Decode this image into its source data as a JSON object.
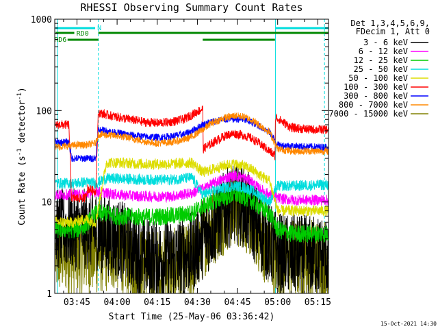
{
  "chart_data": {
    "type": "line",
    "title": "RHESSI Observing Summary Count Rates",
    "xlabel": "Start Time (25-May-06 03:36:42)",
    "ylabel_main": "Count Rate (s",
    "ylabel_sup1": "-1",
    "ylabel_mid": " detector",
    "ylabel_sup2": "-1",
    "ylabel_end": ")",
    "yscale": "log",
    "ylim": [
      1,
      1000
    ],
    "xlim_min": [
      36.7,
      139
    ],
    "x_ticks": [
      {
        "m": 45,
        "label": "03:45"
      },
      {
        "m": 60,
        "label": "04:00"
      },
      {
        "m": 75,
        "label": "04:15"
      },
      {
        "m": 90,
        "label": "04:30"
      },
      {
        "m": 105,
        "label": "04:45"
      },
      {
        "m": 120,
        "label": "05:00"
      },
      {
        "m": 135,
        "label": "05:15"
      }
    ],
    "y_ticks": [
      {
        "v": 1,
        "label": "1"
      },
      {
        "v": 10,
        "label": "10"
      },
      {
        "v": 100,
        "label": "100"
      },
      {
        "v": 1000,
        "label": "1000"
      }
    ],
    "legend_header": [
      "Det 1,3,4,5,6,9,",
      "FDecim 1, Att 0"
    ],
    "legend_position": "right",
    "series": [
      {
        "name": "3 - 6 keV",
        "color": "#000000",
        "points": [
          [
            37,
            5
          ],
          [
            42,
            5
          ],
          [
            45,
            5
          ],
          [
            48,
            5
          ],
          [
            52,
            5
          ],
          [
            55,
            4.5
          ],
          [
            60,
            4
          ],
          [
            70,
            2.5
          ],
          [
            80,
            2.3
          ],
          [
            88,
            2.8
          ],
          [
            92,
            4
          ],
          [
            97,
            6
          ],
          [
            101,
            8.5
          ],
          [
            104,
            9.5
          ],
          [
            107,
            9
          ],
          [
            110,
            7
          ],
          [
            113,
            5
          ],
          [
            117,
            3.5
          ],
          [
            120,
            2.8
          ],
          [
            125,
            2.6
          ],
          [
            139,
            2.6
          ]
        ]
      },
      {
        "name": "6 - 12 keV",
        "color": "#ff00ff",
        "points": [
          [
            37,
            12
          ],
          [
            44,
            12
          ],
          [
            48,
            12
          ],
          [
            52,
            13
          ],
          [
            56,
            12.5
          ],
          [
            60,
            12
          ],
          [
            70,
            11.5
          ],
          [
            80,
            11.5
          ],
          [
            88,
            12.5
          ],
          [
            92,
            14
          ],
          [
            97,
            16.5
          ],
          [
            101,
            18.5
          ],
          [
            104,
            19.5
          ],
          [
            107,
            18.5
          ],
          [
            110,
            17
          ],
          [
            113,
            14
          ],
          [
            117,
            12
          ],
          [
            120,
            11
          ],
          [
            125,
            10.5
          ],
          [
            139,
            10.5
          ]
        ]
      },
      {
        "name": "12 - 25 keV",
        "color": "#00cc00",
        "points": [
          [
            37,
            5
          ],
          [
            42,
            5
          ],
          [
            45,
            5
          ],
          [
            48,
            5.5
          ],
          [
            52,
            7.5
          ],
          [
            56,
            7.5
          ],
          [
            60,
            7
          ],
          [
            70,
            6.8
          ],
          [
            80,
            7
          ],
          [
            88,
            7.5
          ],
          [
            92,
            9
          ],
          [
            97,
            10.5
          ],
          [
            101,
            11.5
          ],
          [
            104,
            12
          ],
          [
            107,
            11.5
          ],
          [
            110,
            10.5
          ],
          [
            113,
            9
          ],
          [
            117,
            7.5
          ],
          [
            120,
            5
          ],
          [
            125,
            4.5
          ],
          [
            139,
            4.5
          ]
        ]
      },
      {
        "name": "25 - 50 keV",
        "color": "#00dddd",
        "points": [
          [
            37,
            16
          ],
          [
            44,
            16
          ],
          [
            48,
            16.5
          ],
          [
            52,
            16
          ],
          [
            56,
            18
          ],
          [
            60,
            18
          ],
          [
            70,
            17.5
          ],
          [
            80,
            17.5
          ],
          [
            88,
            18.5
          ],
          [
            92,
            12
          ],
          [
            97,
            13.5
          ],
          [
            101,
            14.5
          ],
          [
            104,
            15
          ],
          [
            107,
            14.5
          ],
          [
            110,
            13.5
          ],
          [
            113,
            12
          ],
          [
            117,
            10
          ],
          [
            120,
            15
          ],
          [
            125,
            15
          ],
          [
            139,
            15.5
          ]
        ]
      },
      {
        "name": "50 - 100 keV",
        "color": "#dddd00",
        "points": [
          [
            37,
            6
          ],
          [
            44,
            6
          ],
          [
            48,
            6.5
          ],
          [
            52,
            6
          ],
          [
            56,
            27
          ],
          [
            60,
            27
          ],
          [
            70,
            26
          ],
          [
            80,
            26
          ],
          [
            88,
            27
          ],
          [
            92,
            21
          ],
          [
            97,
            23.5
          ],
          [
            101,
            25.5
          ],
          [
            104,
            26
          ],
          [
            107,
            25
          ],
          [
            110,
            23
          ],
          [
            113,
            20
          ],
          [
            117,
            17
          ],
          [
            120,
            8
          ],
          [
            125,
            8
          ],
          [
            139,
            8
          ]
        ]
      },
      {
        "name": "100 - 300 keV",
        "color": "#ff0000",
        "points": [
          [
            37,
            70
          ],
          [
            42,
            70
          ],
          [
            43,
            11
          ],
          [
            48,
            11
          ],
          [
            49,
            14
          ],
          [
            52,
            13
          ],
          [
            53,
            95
          ],
          [
            56,
            90
          ],
          [
            60,
            85
          ],
          [
            65,
            80
          ],
          [
            70,
            75
          ],
          [
            75,
            73
          ],
          [
            80,
            75
          ],
          [
            85,
            80
          ],
          [
            88,
            90
          ],
          [
            92,
            105
          ],
          [
            92.2,
            38
          ],
          [
            97,
            47
          ],
          [
            101,
            54
          ],
          [
            104,
            56
          ],
          [
            107,
            54
          ],
          [
            110,
            50
          ],
          [
            113,
            44
          ],
          [
            117,
            36
          ],
          [
            119,
            32
          ],
          [
            119.2,
            85
          ],
          [
            125,
            65
          ],
          [
            132,
            62
          ],
          [
            139,
            62
          ]
        ]
      },
      {
        "name": "300 - 800 keV",
        "color": "#0000ff",
        "points": [
          [
            37,
            45
          ],
          [
            42,
            45
          ],
          [
            43,
            30
          ],
          [
            48,
            30
          ],
          [
            52,
            30
          ],
          [
            53,
            62
          ],
          [
            56,
            60
          ],
          [
            60,
            57
          ],
          [
            65,
            54
          ],
          [
            70,
            52
          ],
          [
            75,
            51
          ],
          [
            80,
            52
          ],
          [
            85,
            55
          ],
          [
            88,
            60
          ],
          [
            92,
            70
          ],
          [
            95,
            75
          ],
          [
            100,
            80
          ],
          [
            104,
            81
          ],
          [
            107,
            80
          ],
          [
            110,
            75
          ],
          [
            113,
            68
          ],
          [
            117,
            58
          ],
          [
            120,
            42
          ],
          [
            125,
            41
          ],
          [
            132,
            40
          ],
          [
            139,
            40
          ]
        ]
      },
      {
        "name": "800 - 7000 keV",
        "color": "#ff8800",
        "points": [
          [
            37,
            40
          ],
          [
            42,
            41
          ],
          [
            45,
            42
          ],
          [
            48,
            42
          ],
          [
            52,
            44
          ],
          [
            53,
            55
          ],
          [
            56,
            54
          ],
          [
            60,
            53
          ],
          [
            65,
            50
          ],
          [
            70,
            46
          ],
          [
            75,
            44
          ],
          [
            80,
            45
          ],
          [
            85,
            48
          ],
          [
            88,
            52
          ],
          [
            92,
            62
          ],
          [
            95,
            72
          ],
          [
            100,
            83
          ],
          [
            104,
            88
          ],
          [
            107,
            86
          ],
          [
            110,
            80
          ],
          [
            113,
            70
          ],
          [
            117,
            58
          ],
          [
            120,
            38
          ],
          [
            125,
            36
          ],
          [
            132,
            36
          ],
          [
            139,
            36
          ]
        ]
      },
      {
        "name": "7000 - 15000 keV",
        "color": "#808000",
        "points": [
          [
            37,
            2.6
          ],
          [
            42,
            2.7
          ],
          [
            45,
            2.7
          ],
          [
            48,
            2.7
          ],
          [
            52,
            2.7
          ],
          [
            55,
            2.8
          ],
          [
            60,
            3
          ],
          [
            70,
            1.8
          ],
          [
            80,
            1.8
          ],
          [
            88,
            2.2
          ],
          [
            92,
            4
          ],
          [
            97,
            6
          ],
          [
            101,
            8
          ],
          [
            104,
            9
          ],
          [
            107,
            8.5
          ],
          [
            110,
            6.5
          ],
          [
            113,
            4.5
          ],
          [
            117,
            3
          ],
          [
            120,
            2.4
          ],
          [
            125,
            2.4
          ],
          [
            139,
            2.4
          ]
        ]
      }
    ],
    "flags": {
      "n_label": "N",
      "rd0_label": "RD0",
      "rd6_label": "RD6"
    },
    "timestamp": "15-Oct-2021 14:30"
  }
}
